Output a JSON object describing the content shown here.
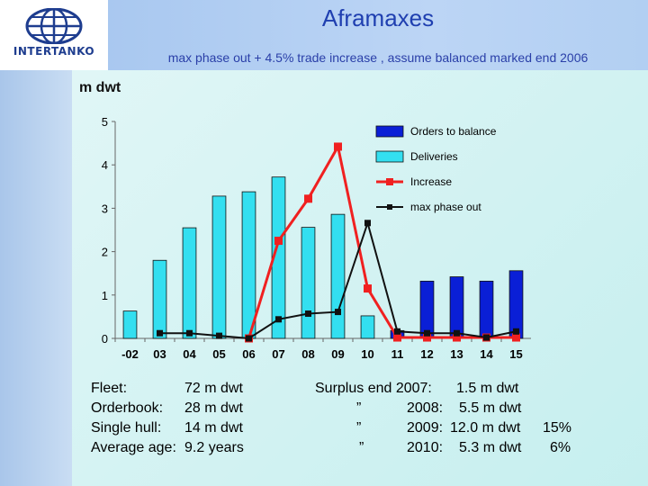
{
  "logo": {
    "text": "INTERTANKO"
  },
  "title": "Aframaxes",
  "subtitle": "max phase out + 4.5% trade increase , assume balanced marked end 2006",
  "chart_data": {
    "type": "bar",
    "unit_label": "m dwt",
    "categories": [
      "-02",
      "03",
      "04",
      "05",
      "06",
      "07",
      "08",
      "09",
      "10",
      "11",
      "12",
      "13",
      "14",
      "15"
    ],
    "ylim": [
      0,
      5
    ],
    "yticks": [
      0,
      1,
      2,
      3,
      4,
      5
    ],
    "grid": false,
    "legend_position": "top-right",
    "series": [
      {
        "name": "Orders to balance",
        "kind": "bar",
        "color": "#0a1fd6",
        "values": [
          null,
          null,
          null,
          null,
          null,
          null,
          null,
          null,
          null,
          0.18,
          1.32,
          1.42,
          1.32,
          1.56
        ]
      },
      {
        "name": "Deliveries",
        "kind": "bar",
        "color": "#33dff0",
        "values": [
          0.63,
          1.8,
          2.55,
          3.28,
          3.38,
          3.72,
          2.56,
          2.86,
          0.52,
          null,
          null,
          null,
          null,
          null
        ]
      },
      {
        "name": "Increase",
        "kind": "line",
        "color": "#f02020",
        "values": [
          null,
          null,
          null,
          null,
          0.0,
          2.25,
          3.22,
          4.42,
          1.15,
          0.02,
          0.02,
          0.02,
          0.02,
          0.02
        ]
      },
      {
        "name": "max phase out",
        "kind": "line",
        "color": "#111111",
        "values": [
          null,
          0.12,
          0.12,
          0.06,
          0.0,
          0.44,
          0.57,
          0.61,
          2.66,
          0.16,
          0.12,
          0.12,
          0.02,
          0.16
        ]
      }
    ]
  },
  "fleet_info": [
    {
      "label": "Fleet:",
      "value": "72 m dwt"
    },
    {
      "label": "Orderbook:",
      "value": "28 m dwt"
    },
    {
      "label": "Single hull:",
      "value": "14 m dwt"
    },
    {
      "label": "Average age:",
      "value": "9.2 years"
    }
  ],
  "surplus_info": [
    {
      "label": "Surplus end 2007:",
      "value": "1.5  m dwt",
      "pct": ""
    },
    {
      "label": "”",
      "year": "2008:",
      "value": "5.5 m dwt",
      "pct": ""
    },
    {
      "label": "”",
      "year": "2009:",
      "value": "12.0 m dwt",
      "pct": "15%"
    },
    {
      "label": "”",
      "year": "2010:",
      "value": "5.3 m dwt",
      "pct": "6%"
    }
  ]
}
